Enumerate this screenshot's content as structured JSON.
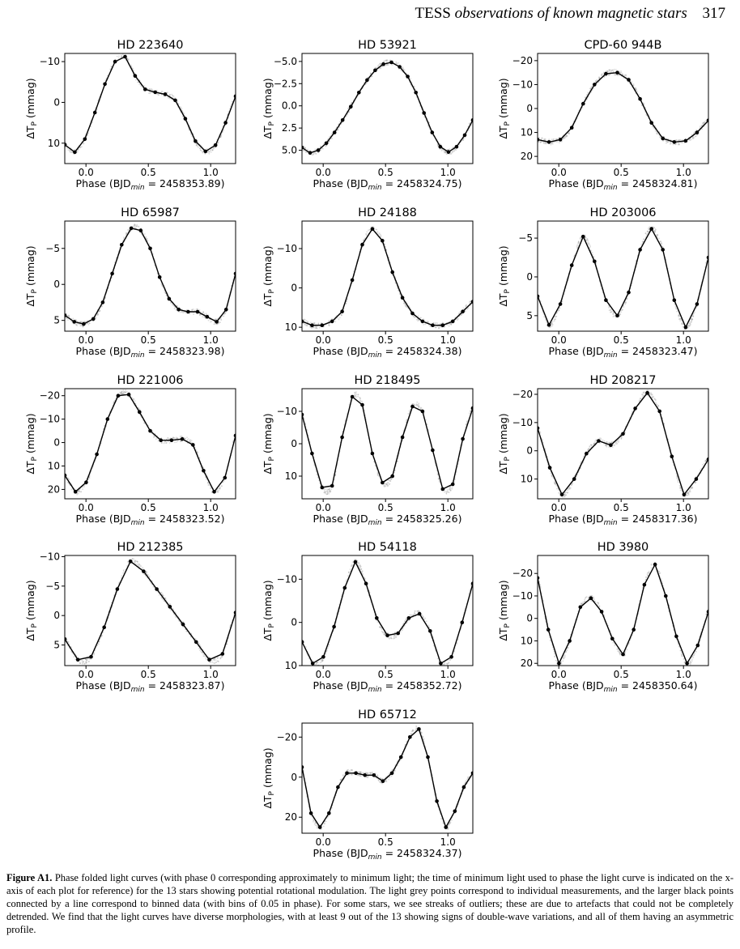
{
  "page": {
    "running_head": "TESS",
    "running_head_italic": "observations of known magnetic stars",
    "page_number": "317"
  },
  "caption": {
    "label": "Figure A1.",
    "text": "Phase folded light curves (with phase 0 corresponding approximately to minimum light; the time of minimum light used to phase the light curve is indicated on the x-axis of each plot for reference) for the 13 stars showing potential rotational modulation. The light grey points correspond to individual measurements, and the larger black points connected by a line correspond to binned data (with bins of 0.05 in phase). For some stars, we see streaks of outliers; these are due to artefacts that could not be completely detrended. We find that the light curves have diverse morphologies, with at least 9 out of the 13 showing signs of double-wave variations, and all of them having an asymmetric profile."
  },
  "chart_data": [
    {
      "type": "line",
      "title": "HD 223640",
      "ylabel": "ΔT_P (mmag)",
      "xlabel_prefix": "Phase (BJD",
      "xlabel_sub": "min",
      "xlabel_value": "2458353.89",
      "xlim": [
        -0.17,
        1.2
      ],
      "ylim": [
        15,
        -12
      ],
      "y_inverted": true,
      "xticks": [
        "0.0",
        "0.5",
        "1.0"
      ],
      "yticks": [
        -10,
        0,
        10
      ],
      "series": [
        {
          "values": [
            10.4,
            12.2,
            9.0,
            2.5,
            -4.5,
            -10.0,
            -11.2,
            -6.5,
            -3.2,
            -2.5,
            -2.0,
            -0.5,
            4.0,
            9.5,
            12.0,
            10.5,
            5.0,
            -1.5
          ]
        }
      ]
    },
    {
      "type": "line",
      "title": "HD 53921",
      "ylabel": "ΔT_P (mmag)",
      "xlabel_prefix": "Phase (BJD",
      "xlabel_sub": "min",
      "xlabel_value": "2458324.75",
      "xlim": [
        -0.17,
        1.2
      ],
      "ylim": [
        6.5,
        -5.9
      ],
      "y_inverted": true,
      "xticks": [
        "0.0",
        "0.5",
        "1.0"
      ],
      "yticks": [
        -5.0,
        -2.5,
        0.0,
        2.5,
        5.0
      ],
      "series": [
        {
          "values": [
            4.7,
            5.3,
            5.0,
            4.2,
            3.0,
            1.6,
            0.1,
            -1.5,
            -2.9,
            -4.0,
            -4.7,
            -4.9,
            -4.4,
            -3.3,
            -1.5,
            0.8,
            3.0,
            4.6,
            5.2,
            4.6,
            3.3,
            1.6
          ]
        }
      ]
    },
    {
      "type": "line",
      "title": "CPD-60 944B",
      "ylabel": "ΔT_P (mmag)",
      "xlabel_prefix": "Phase (BJD",
      "xlabel_sub": "min",
      "xlabel_value": "2458324.81",
      "xlim": [
        -0.17,
        1.2
      ],
      "ylim": [
        23,
        -23
      ],
      "y_inverted": true,
      "xticks": [
        "0.0",
        "0.5",
        "1.0"
      ],
      "yticks": [
        -20,
        -10,
        0,
        10,
        20
      ],
      "series": [
        {
          "values": [
            13.0,
            14.0,
            13.0,
            8.0,
            -2.0,
            -10.0,
            -14.5,
            -15.0,
            -12.0,
            -4.0,
            6.0,
            12.5,
            14.0,
            13.5,
            10.0,
            5.0
          ]
        }
      ]
    },
    {
      "type": "line",
      "title": "HD 65987",
      "ylabel": "ΔT_P (mmag)",
      "xlabel_prefix": "Phase (BJD",
      "xlabel_sub": "min",
      "xlabel_value": "2458323.98",
      "xlim": [
        -0.17,
        1.2
      ],
      "ylim": [
        6.5,
        -8.8
      ],
      "y_inverted": true,
      "xticks": [
        "0.0",
        "0.5",
        "1.0"
      ],
      "yticks": [
        -5,
        0,
        5
      ],
      "series": [
        {
          "values": [
            4.3,
            5.2,
            5.5,
            4.8,
            2.5,
            -1.5,
            -5.5,
            -7.8,
            -7.5,
            -5.0,
            -1.0,
            2.0,
            3.5,
            3.8,
            3.8,
            4.5,
            5.2,
            3.5,
            -1.5
          ]
        }
      ]
    },
    {
      "type": "line",
      "title": "HD 24188",
      "ylabel": "ΔT_P (mmag)",
      "xlabel_prefix": "Phase (BJD",
      "xlabel_sub": "min",
      "xlabel_value": "2458324.38",
      "xlim": [
        -0.17,
        1.2
      ],
      "ylim": [
        11,
        -17
      ],
      "y_inverted": true,
      "xticks": [
        "0.0",
        "0.5",
        "1.0"
      ],
      "yticks": [
        -10,
        0,
        10
      ],
      "series": [
        {
          "values": [
            8.5,
            9.5,
            9.5,
            8.5,
            6.0,
            -2.0,
            -11.0,
            -15.0,
            -12.0,
            -4.0,
            2.5,
            6.5,
            8.5,
            9.5,
            9.5,
            8.5,
            6.0,
            3.5
          ]
        }
      ]
    },
    {
      "type": "line",
      "title": "HD 203006",
      "ylabel": "ΔT_P (mmag)",
      "xlabel_prefix": "Phase (BJD",
      "xlabel_sub": "min",
      "xlabel_value": "2458323.47",
      "xlim": [
        -0.17,
        1.2
      ],
      "ylim": [
        7,
        -7.2
      ],
      "y_inverted": true,
      "xticks": [
        "0.0",
        "0.5",
        "1.0"
      ],
      "yticks": [
        -5,
        0,
        5
      ],
      "series": [
        {
          "values": [
            2.5,
            6.2,
            3.5,
            -1.5,
            -5.2,
            -2.0,
            3.0,
            5.0,
            2.0,
            -3.5,
            -6.2,
            -3.5,
            3.0,
            6.5,
            3.5,
            -2.5
          ]
        }
      ]
    },
    {
      "type": "line",
      "title": "HD 221006",
      "ylabel": "ΔT_P (mmag)",
      "xlabel_prefix": "Phase (BJD",
      "xlabel_sub": "min",
      "xlabel_value": "2458323.52",
      "xlim": [
        -0.17,
        1.2
      ],
      "ylim": [
        24,
        -23
      ],
      "y_inverted": true,
      "xticks": [
        "0.0",
        "0.5",
        "1.0"
      ],
      "yticks": [
        -20,
        -10,
        0,
        10,
        20
      ],
      "series": [
        {
          "values": [
            14.0,
            21.0,
            17.0,
            5.0,
            -10.0,
            -20.0,
            -20.5,
            -13.0,
            -5.0,
            -1.0,
            -1.0,
            -1.5,
            1.0,
            12.0,
            21.0,
            15.0,
            -3.0
          ]
        }
      ]
    },
    {
      "type": "line",
      "title": "HD 218495",
      "ylabel": "ΔT_P (mmag)",
      "xlabel_prefix": "Phase (BJD",
      "xlabel_sub": "min",
      "xlabel_value": "2458325.26",
      "xlim": [
        -0.17,
        1.2
      ],
      "ylim": [
        17,
        -17
      ],
      "y_inverted": true,
      "xticks": [
        "0.0",
        "0.5",
        "1.0"
      ],
      "yticks": [
        -10,
        0,
        10
      ],
      "series": [
        {
          "values": [
            -9.0,
            3.0,
            13.5,
            13.0,
            -2.0,
            -14.5,
            -12.0,
            3.0,
            12.0,
            10.0,
            -2.0,
            -11.5,
            -10.0,
            2.0,
            14.0,
            12.5,
            -1.5,
            -11.0
          ]
        }
      ]
    },
    {
      "type": "line",
      "title": "HD 208217",
      "ylabel": "ΔT_P (mmag)",
      "xlabel_prefix": "Phase (BJD",
      "xlabel_sub": "min",
      "xlabel_value": "2458317.36",
      "xlim": [
        -0.17,
        1.2
      ],
      "ylim": [
        17,
        -22
      ],
      "y_inverted": true,
      "xticks": [
        "0.0",
        "0.5",
        "1.0"
      ],
      "yticks": [
        -20,
        -10,
        0,
        10
      ],
      "series": [
        {
          "values": [
            -8.0,
            6.0,
            15.5,
            10.0,
            1.0,
            -3.5,
            -2.0,
            -6.0,
            -15.0,
            -20.5,
            -14.0,
            2.0,
            15.5,
            10.0,
            3.0
          ]
        }
      ]
    },
    {
      "type": "line",
      "title": "HD 212385",
      "ylabel": "ΔT_P (mmag)",
      "xlabel_prefix": "Phase (BJD",
      "xlabel_sub": "min",
      "xlabel_value": "2458323.87",
      "xlim": [
        -0.17,
        1.2
      ],
      "ylim": [
        8.5,
        -10.2
      ],
      "y_inverted": true,
      "xticks": [
        "0.0",
        "0.5",
        "1.0"
      ],
      "yticks": [
        -10,
        -5,
        0,
        5
      ],
      "series": [
        {
          "values": [
            4.0,
            7.5,
            7.0,
            2.0,
            -4.5,
            -9.2,
            -7.5,
            -4.5,
            -1.5,
            1.5,
            4.5,
            7.5,
            6.5,
            -0.5
          ]
        }
      ]
    },
    {
      "type": "line",
      "title": "HD 54118",
      "ylabel": "ΔT_P (mmag)",
      "xlabel_prefix": "Phase (BJD",
      "xlabel_sub": "min",
      "xlabel_value": "2458352.72",
      "xlim": [
        -0.17,
        1.2
      ],
      "ylim": [
        10,
        -15.5
      ],
      "y_inverted": true,
      "xticks": [
        "0.0",
        "0.5",
        "1.0"
      ],
      "yticks": [
        -10,
        0,
        10
      ],
      "series": [
        {
          "values": [
            4.5,
            9.5,
            8.0,
            1.0,
            -8.0,
            -14.0,
            -9.0,
            -1.0,
            3.0,
            2.5,
            -1.0,
            -2.0,
            2.0,
            9.5,
            8.0,
            0.0,
            -9.0
          ]
        }
      ]
    },
    {
      "type": "line",
      "title": "HD 3980",
      "ylabel": "ΔT_P (mmag)",
      "xlabel_prefix": "Phase (BJD",
      "xlabel_sub": "min",
      "xlabel_value": "2458350.64",
      "xlim": [
        -0.17,
        1.2
      ],
      "ylim": [
        21,
        -28
      ],
      "y_inverted": true,
      "xticks": [
        "0.0",
        "0.5",
        "1.0"
      ],
      "yticks": [
        -20,
        -10,
        0,
        10,
        20
      ],
      "series": [
        {
          "values": [
            -18.0,
            5.0,
            20.0,
            10.0,
            -5.0,
            -9.0,
            -3.0,
            9.0,
            16.0,
            5.0,
            -15.0,
            -24.0,
            -10.0,
            8.0,
            20.0,
            12.0,
            -3.0
          ]
        }
      ]
    },
    {
      "type": "line",
      "title": "HD 65712",
      "ylabel": "ΔT_P (mmag)",
      "xlabel_prefix": "Phase (BJD",
      "xlabel_sub": "min",
      "xlabel_value": "2458324.37",
      "xlim": [
        -0.17,
        1.2
      ],
      "ylim": [
        28,
        -27
      ],
      "y_inverted": true,
      "xticks": [
        "0.0",
        "0.5",
        "1.0"
      ],
      "yticks": [
        -20,
        0,
        20
      ],
      "series": [
        {
          "values": [
            -5.0,
            18.0,
            25.0,
            18.0,
            5.0,
            -2.0,
            -2.0,
            -1.0,
            -1.0,
            2.0,
            -2.0,
            -10.0,
            -20.0,
            -24.0,
            -10.0,
            12.0,
            25.0,
            17.0,
            5.0,
            -2.0
          ]
        }
      ]
    }
  ]
}
